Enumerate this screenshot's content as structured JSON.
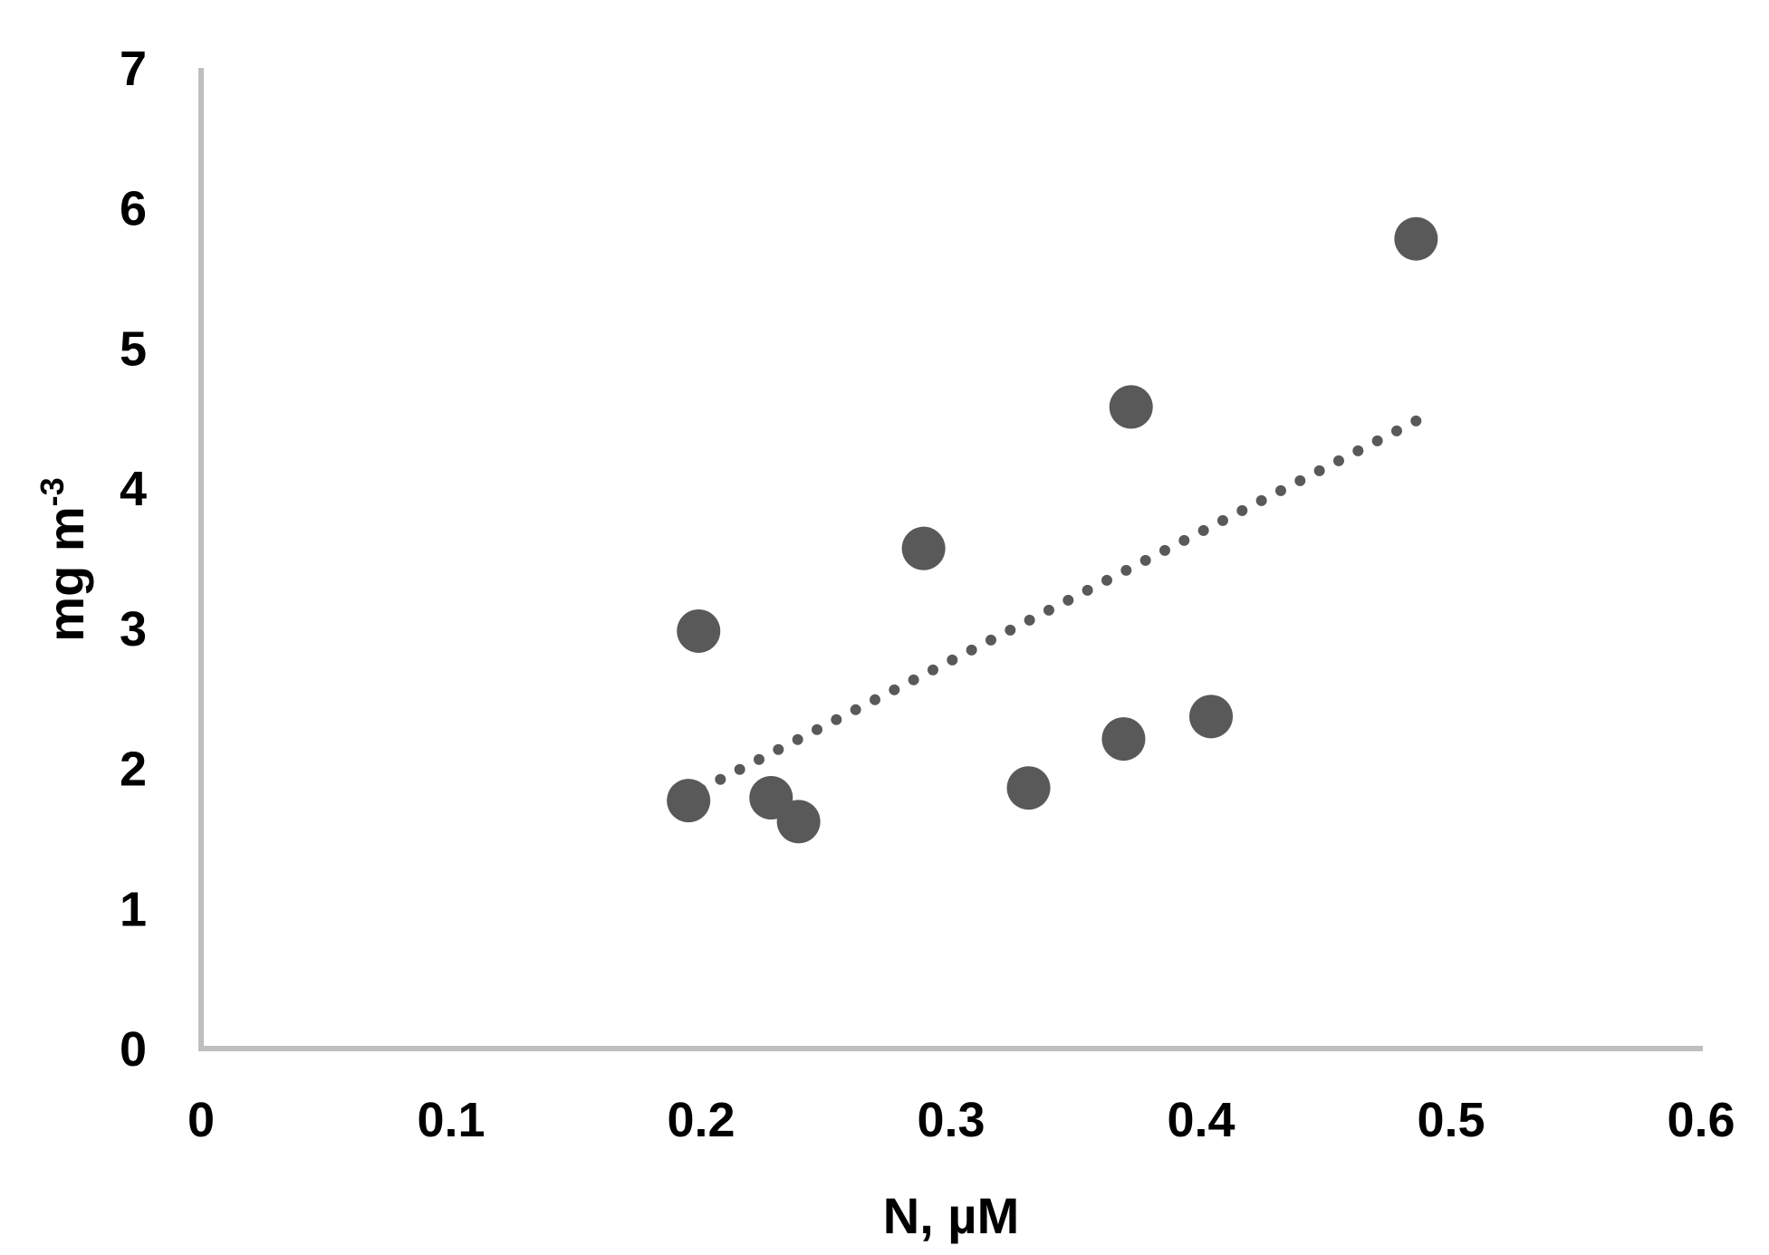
{
  "chart_data": {
    "type": "scatter",
    "title": "",
    "xlabel": "N, µM",
    "ylabel": {
      "base": "mg m",
      "sup": "-3"
    },
    "xlim": [
      0,
      0.6
    ],
    "ylim": [
      0,
      7
    ],
    "xticks": [
      "0",
      "0.1",
      "0.2",
      "0.3",
      "0.4",
      "0.5",
      "0.6"
    ],
    "yticks": [
      "0",
      "1",
      "2",
      "3",
      "4",
      "5",
      "6",
      "7"
    ],
    "grid": false,
    "legend": "none",
    "series": [
      {
        "points": [
          {
            "x": 0.195,
            "y": 1.77
          },
          {
            "x": 0.199,
            "y": 2.98
          },
          {
            "x": 0.228,
            "y": 1.79
          },
          {
            "x": 0.239,
            "y": 1.62
          },
          {
            "x": 0.289,
            "y": 3.57
          },
          {
            "x": 0.331,
            "y": 1.86
          },
          {
            "x": 0.369,
            "y": 2.21
          },
          {
            "x": 0.372,
            "y": 4.58
          },
          {
            "x": 0.404,
            "y": 2.37
          },
          {
            "x": 0.486,
            "y": 5.78
          }
        ],
        "color": "#595959"
      }
    ],
    "trendline": {
      "type": "linear",
      "style": "dotted",
      "color": "#595959",
      "x_start": 0.2,
      "y_start": 1.85,
      "x_end": 0.486,
      "y_end": 4.48
    }
  }
}
